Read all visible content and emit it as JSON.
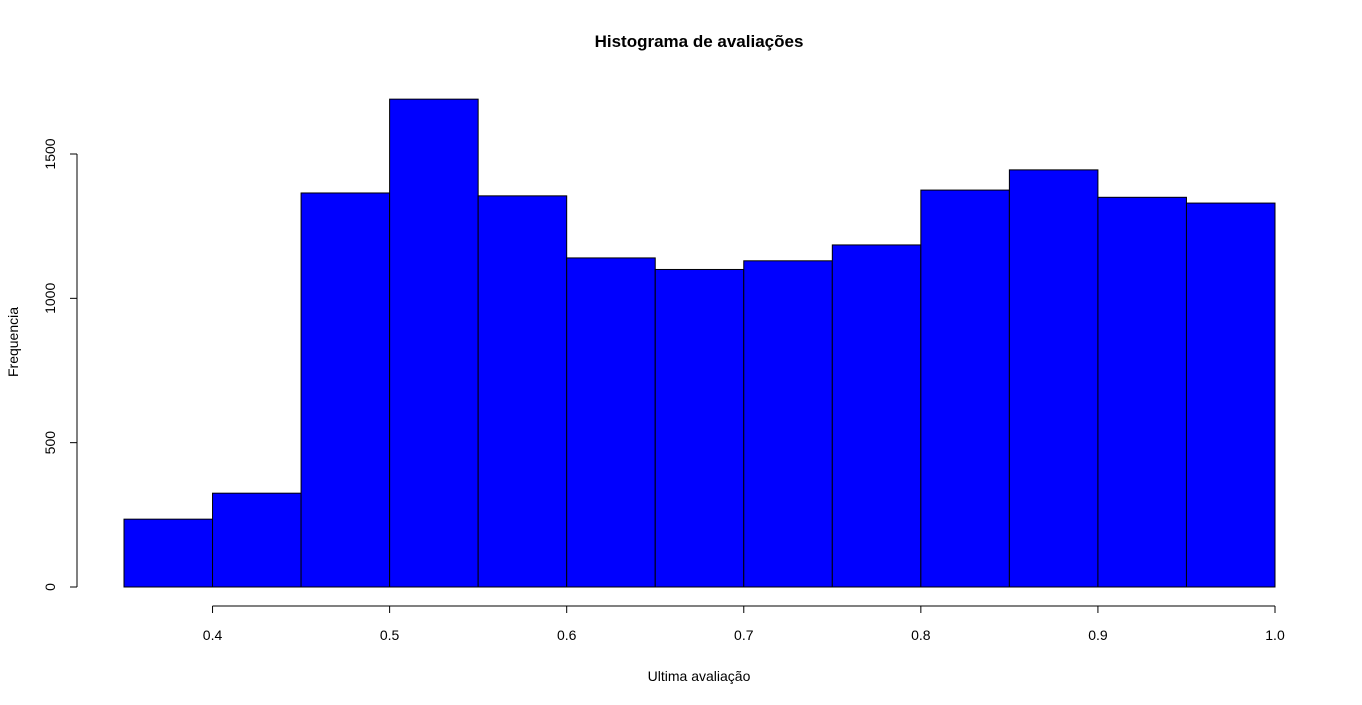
{
  "chart_data": {
    "type": "bar",
    "title": "Histograma de avaliações",
    "xlabel": "Ultima avaliação",
    "ylabel": "Frequencia",
    "bin_edges": [
      0.35,
      0.4,
      0.45,
      0.5,
      0.55,
      0.6,
      0.65,
      0.7,
      0.75,
      0.8,
      0.85,
      0.9,
      0.95,
      1.0
    ],
    "values": [
      235,
      325,
      1365,
      1690,
      1355,
      1140,
      1100,
      1130,
      1185,
      1375,
      1445,
      1350,
      1330
    ],
    "bar_color": "#0000ff",
    "xlim": [
      0.35,
      1.0
    ],
    "ylim": [
      0,
      1700
    ],
    "x_ticks": [
      0.4,
      0.5,
      0.6,
      0.7,
      0.8,
      0.9,
      1.0
    ],
    "x_tick_labels": [
      "0.4",
      "0.5",
      "0.6",
      "0.7",
      "0.8",
      "0.9",
      "1.0"
    ],
    "y_ticks": [
      0,
      500,
      1000,
      1500
    ],
    "y_tick_labels": [
      "0",
      "500",
      "1000",
      "1500"
    ],
    "grid": false,
    "legend": "none"
  }
}
